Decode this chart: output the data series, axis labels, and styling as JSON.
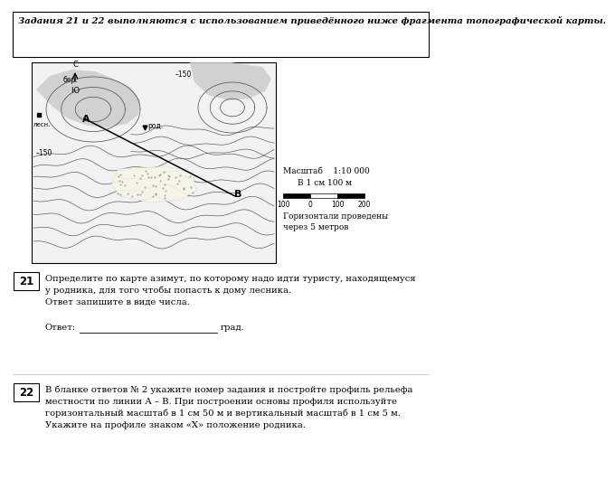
{
  "title_text": "Задания 21 и 22 выполняются с использованием приведённого ниже фрагмента топографической карты.",
  "scale_line1": "Масштаб    1:10 000",
  "scale_line2": "В 1 см 100 м",
  "horizontal_label": "Горизонтали проведены\nчерез 5 метров",
  "q21_num": "21",
  "q21_text": "Определите по карте азимут, по которому надо идти туристу, находящемуся\nу родника, для того чтобы попасть к дому лесника.\nОтвет запишите в виде числа.",
  "q21_answer_label": "Ответ:",
  "q21_answer_suffix": "град.",
  "q22_num": "22",
  "q22_text": "В бланке ответов № 2 укажите номер задания и постройте профиль рельефа\nместности по линии А – В. При построении основы профиля используйте\nгоризонтальный масштаб в 1 см 50 м и вертикальный масштаб в 1 см 5 м.\nУкажите на профиле знаком «Х» положение родника.",
  "bg_color": "#ffffff"
}
